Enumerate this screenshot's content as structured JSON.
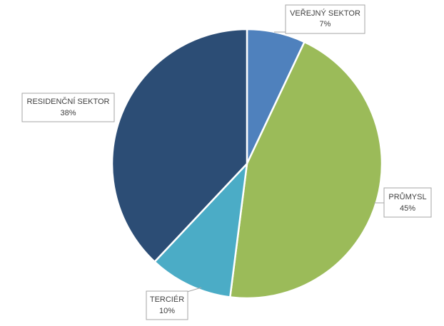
{
  "chart_data": {
    "type": "pie",
    "title": "",
    "start_angle_deg": 0,
    "direction": "clockwise",
    "slices": [
      {
        "label": "VEŘEJNÝ SEKTOR",
        "value": 7,
        "value_label": "7%",
        "color": "#4f81bd"
      },
      {
        "label": "PRŮMYSL",
        "value": 45,
        "value_label": "45%",
        "color": "#9bbb59"
      },
      {
        "label": "TERCIÉR",
        "value": 10,
        "value_label": "10%",
        "color": "#4bacc6"
      },
      {
        "label": "RESIDENČNÍ SEKTOR",
        "value": 38,
        "value_label": "38%",
        "color": "#2c4d75"
      }
    ]
  }
}
